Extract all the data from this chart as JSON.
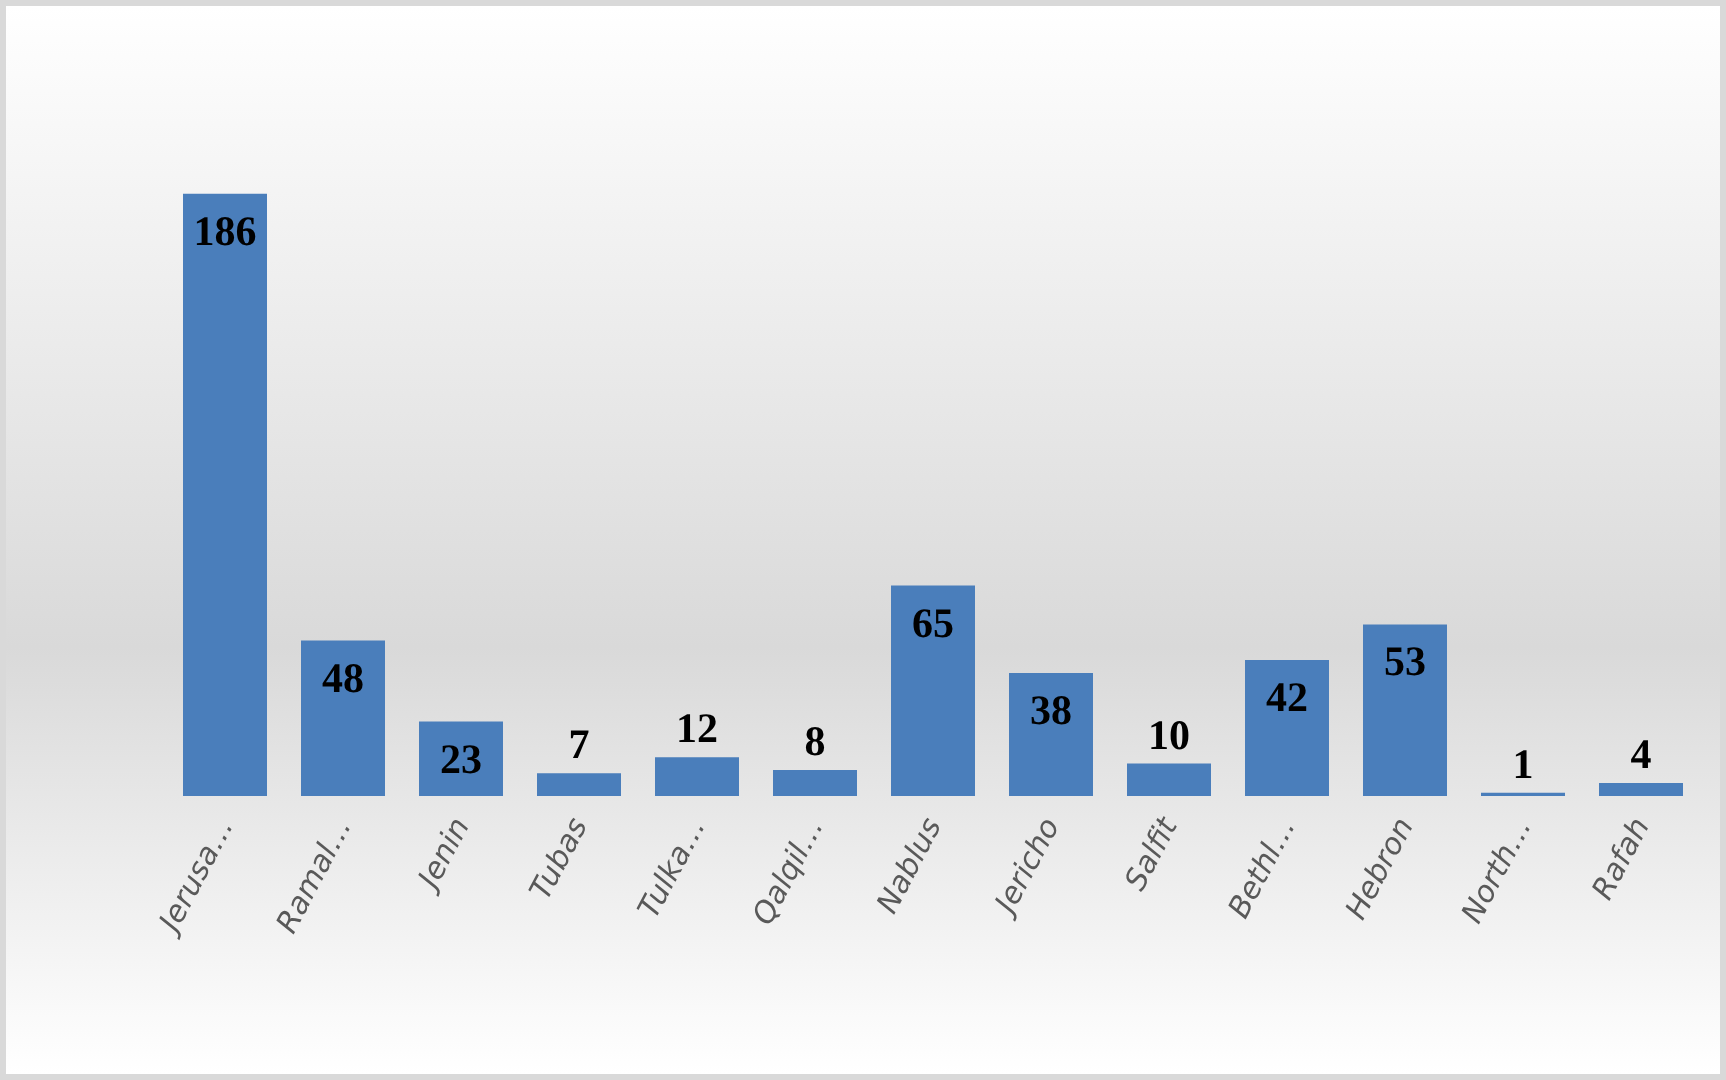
{
  "chart_data": {
    "type": "bar",
    "categories": [
      "Jerusa…",
      "Ramal…",
      "Jenin",
      "Tubas",
      "Tulka…",
      "Qalqil…",
      "Nablus",
      "Jericho",
      "Salfit",
      "Bethl…",
      "Hebron",
      "North…",
      "Rafah"
    ],
    "values": [
      186,
      48,
      23,
      7,
      12,
      8,
      65,
      38,
      10,
      42,
      53,
      1,
      4
    ],
    "color": "#4a7ebb",
    "data_labels": true,
    "grid": false
  }
}
